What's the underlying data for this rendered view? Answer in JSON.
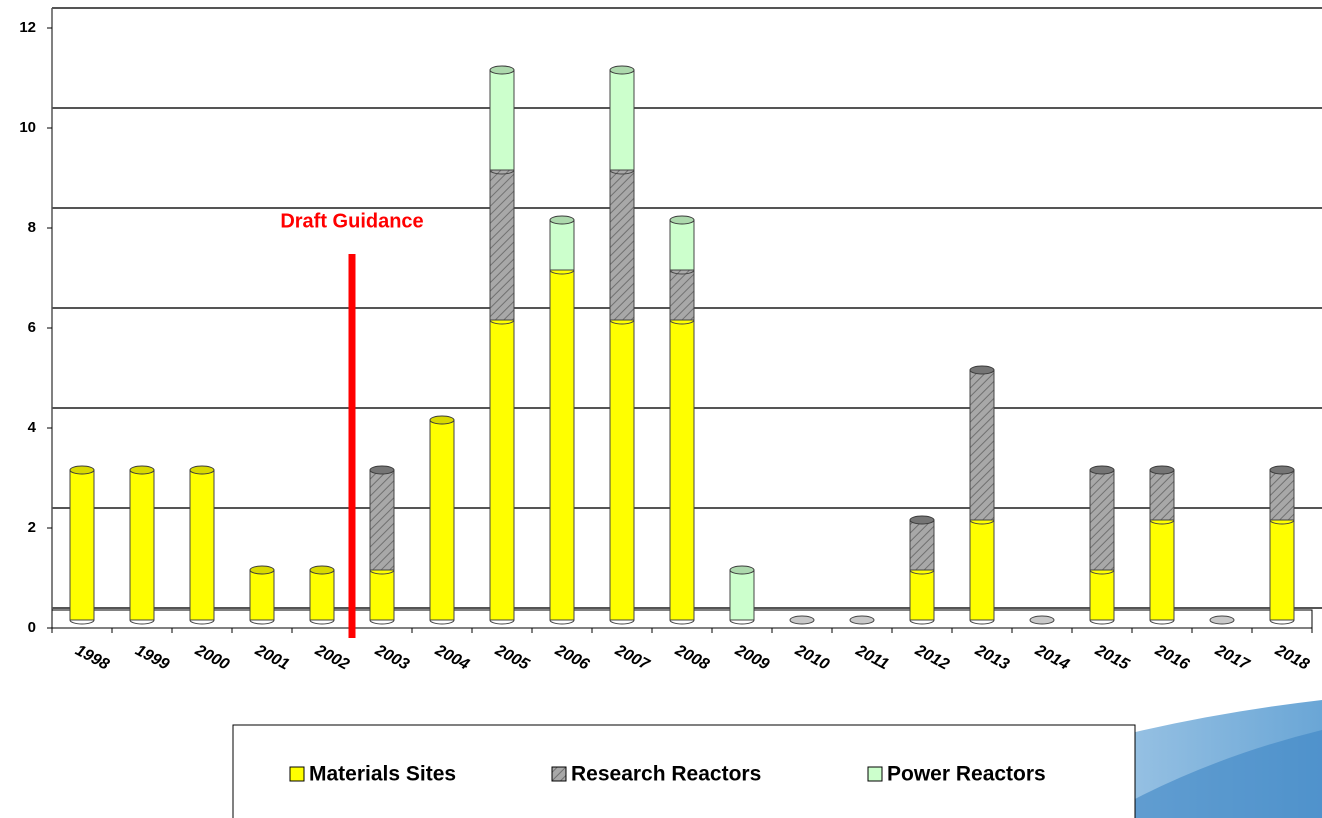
{
  "chart_data": {
    "type": "stacked-cylinder",
    "categories": [
      "1998",
      "1999",
      "2000",
      "2001",
      "2002",
      "2003",
      "2004",
      "2005",
      "2006",
      "2007",
      "2008",
      "2009",
      "2010",
      "2011",
      "2012",
      "2013",
      "2014",
      "2015",
      "2016",
      "2017",
      "2018"
    ],
    "series": [
      {
        "name": "Materials Sites",
        "color": "#ffff00",
        "values": [
          3,
          3,
          3,
          1,
          1,
          1,
          4,
          6,
          7,
          6,
          6,
          0,
          0,
          0,
          1,
          2,
          0,
          1,
          2,
          0,
          2
        ]
      },
      {
        "name": "Research Reactors",
        "color": "#a8a8a8",
        "hatched": true,
        "values": [
          0,
          0,
          0,
          0,
          0,
          2,
          0,
          3,
          0,
          3,
          1,
          0,
          0,
          0,
          1,
          3,
          0,
          2,
          1,
          0,
          1
        ]
      },
      {
        "name": "Power Reactors",
        "color": "#ccffcc",
        "values": [
          0,
          0,
          0,
          0,
          0,
          0,
          0,
          2,
          1,
          2,
          1,
          1,
          0,
          0,
          0,
          0,
          0,
          0,
          0,
          0,
          0
        ]
      }
    ],
    "ylim": [
      0,
      12
    ],
    "yticks": [
      0,
      2,
      4,
      6,
      8,
      10,
      12
    ],
    "grid": true,
    "annotation": {
      "text": "Draft Guidance",
      "color": "#ff0000"
    }
  }
}
